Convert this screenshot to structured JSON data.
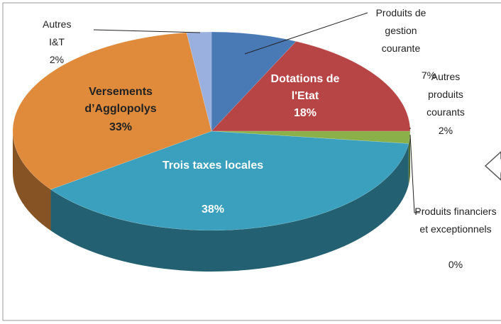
{
  "chart_data": {
    "type": "pie",
    "categories": [
      "Produits de gestion courante",
      "Dotations de l'Etat",
      "Autres produits courants",
      "Produits financiers et exceptionnels",
      "Trois taxes locales",
      "Versements d’Agglopolys",
      "Autres I&T"
    ],
    "values": [
      7,
      18,
      2,
      0,
      38,
      33,
      2
    ],
    "value_labels": [
      "7%",
      "18%",
      "2%",
      "0%",
      "38%",
      "33%",
      "2%"
    ],
    "colors": [
      "#4a7ab5",
      "#b84545",
      "#8ab04a",
      "#7a5fa0",
      "#3ba0bd",
      "#e08a3c",
      "#9ab0de"
    ]
  }
}
